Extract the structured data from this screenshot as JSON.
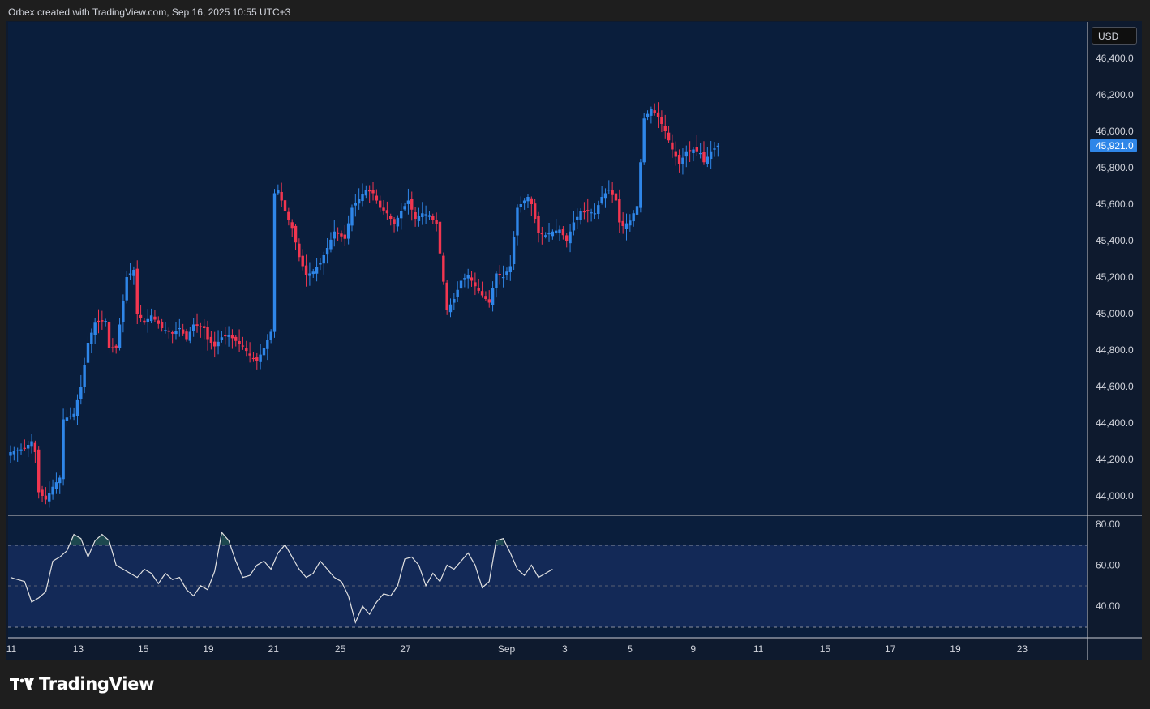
{
  "header": {
    "attribution": "Orbex created with TradingView.com, Sep 16, 2025 10:55 UTC+3"
  },
  "currency_label": "USD",
  "brand": {
    "name": "TradingView"
  },
  "colors": {
    "background": "#0a1e3c",
    "up": "#2f86e8",
    "down": "#f23650",
    "oscillator_band": "#132957",
    "line": "#e0e0e0",
    "price_tag": "#2f86e8"
  },
  "chart_data": [
    {
      "type": "candlestick",
      "title": "",
      "xlabel": "",
      "ylabel": "USD",
      "ylim": [
        43900,
        46550
      ],
      "y_ticks": [
        "44,000.0",
        "44,200.0",
        "44,400.0",
        "44,600.0",
        "44,800.0",
        "45,000.0",
        "45,200.0",
        "45,400.0",
        "45,600.0",
        "45,800.0",
        "46,000.0",
        "46,200.0",
        "46,400.0"
      ],
      "y_tick_values": [
        44000,
        44200,
        44400,
        44600,
        44800,
        45000,
        45200,
        45400,
        45600,
        45800,
        46000,
        46200,
        46400
      ],
      "x_ticks": [
        "11",
        "13",
        "15",
        "19",
        "21",
        "25",
        "27",
        "Sep",
        "3",
        "5",
        "9",
        "11",
        "15",
        "17",
        "19",
        "23"
      ],
      "last_price": 45921,
      "last_price_label": "45,921.0",
      "anchors": [
        [
          0,
          44240
        ],
        [
          4,
          44260
        ],
        [
          6,
          44300
        ],
        [
          7,
          44240
        ],
        [
          8,
          44020
        ],
        [
          10,
          43980
        ],
        [
          12,
          44050
        ],
        [
          14,
          44100
        ],
        [
          15,
          44420
        ],
        [
          18,
          44450
        ],
        [
          20,
          44600
        ],
        [
          22,
          44840
        ],
        [
          24,
          44950
        ],
        [
          27,
          44960
        ],
        [
          28,
          44810
        ],
        [
          30,
          44810
        ],
        [
          33,
          45200
        ],
        [
          35,
          45240
        ],
        [
          36,
          45000
        ],
        [
          38,
          44950
        ],
        [
          40,
          44990
        ],
        [
          43,
          44920
        ],
        [
          46,
          44890
        ],
        [
          48,
          44920
        ],
        [
          50,
          44860
        ],
        [
          52,
          44940
        ],
        [
          55,
          44920
        ],
        [
          56,
          44860
        ],
        [
          58,
          44820
        ],
        [
          60,
          44870
        ],
        [
          62,
          44880
        ],
        [
          64,
          44850
        ],
        [
          66,
          44820
        ],
        [
          68,
          44770
        ],
        [
          70,
          44740
        ],
        [
          72,
          44810
        ],
        [
          74,
          44900
        ],
        [
          75,
          45660
        ],
        [
          76,
          45680
        ],
        [
          78,
          45560
        ],
        [
          80,
          45470
        ],
        [
          82,
          45310
        ],
        [
          84,
          45210
        ],
        [
          86,
          45230
        ],
        [
          88,
          45280
        ],
        [
          90,
          45360
        ],
        [
          92,
          45450
        ],
        [
          95,
          45410
        ],
        [
          97,
          45580
        ],
        [
          99,
          45630
        ],
        [
          101,
          45680
        ],
        [
          103,
          45660
        ],
        [
          105,
          45580
        ],
        [
          107,
          45550
        ],
        [
          109,
          45490
        ],
        [
          111,
          45560
        ],
        [
          113,
          45620
        ],
        [
          115,
          45520
        ],
        [
          117,
          45550
        ],
        [
          119,
          45540
        ],
        [
          121,
          45490
        ],
        [
          122,
          45330
        ],
        [
          124,
          45020
        ],
        [
          126,
          45080
        ],
        [
          128,
          45180
        ],
        [
          130,
          45210
        ],
        [
          132,
          45150
        ],
        [
          134,
          45100
        ],
        [
          136,
          45060
        ],
        [
          138,
          45220
        ],
        [
          140,
          45200
        ],
        [
          142,
          45260
        ],
        [
          144,
          45580
        ],
        [
          147,
          45640
        ],
        [
          148,
          45600
        ],
        [
          150,
          45440
        ],
        [
          152,
          45430
        ],
        [
          154,
          45450
        ],
        [
          156,
          45460
        ],
        [
          158,
          45400
        ],
        [
          160,
          45500
        ],
        [
          162,
          45560
        ],
        [
          164,
          45560
        ],
        [
          166,
          45550
        ],
        [
          168,
          45640
        ],
        [
          170,
          45680
        ],
        [
          172,
          45620
        ],
        [
          173,
          45500
        ],
        [
          174,
          45480
        ],
        [
          176,
          45510
        ],
        [
          178,
          45590
        ],
        [
          180,
          46070
        ],
        [
          182,
          46120
        ],
        [
          184,
          46080
        ],
        [
          186,
          46000
        ],
        [
          188,
          45900
        ],
        [
          190,
          45820
        ],
        [
          192,
          45890
        ],
        [
          194,
          45900
        ],
        [
          196,
          45880
        ],
        [
          197,
          45830
        ],
        [
          199,
          45890
        ],
        [
          201,
          45921
        ]
      ],
      "candle_count": 202
    },
    {
      "type": "line",
      "title": "",
      "xlabel": "",
      "ylabel": "",
      "ylim": [
        24,
        86
      ],
      "y_ticks": [
        "40.00",
        "60.00",
        "80.00"
      ],
      "y_tick_values": [
        40,
        60,
        80
      ],
      "band": [
        30,
        70
      ],
      "midline": 50,
      "anchors": [
        [
          0,
          54
        ],
        [
          4,
          52
        ],
        [
          6,
          42
        ],
        [
          8,
          44
        ],
        [
          10,
          47
        ],
        [
          12,
          62
        ],
        [
          14,
          64
        ],
        [
          16,
          67
        ],
        [
          18,
          75
        ],
        [
          20,
          73
        ],
        [
          22,
          64
        ],
        [
          24,
          72
        ],
        [
          26,
          75
        ],
        [
          28,
          72
        ],
        [
          30,
          60
        ],
        [
          32,
          58
        ],
        [
          34,
          56
        ],
        [
          36,
          54
        ],
        [
          38,
          58
        ],
        [
          40,
          56
        ],
        [
          42,
          51
        ],
        [
          44,
          56
        ],
        [
          46,
          53
        ],
        [
          48,
          54
        ],
        [
          50,
          48
        ],
        [
          52,
          45
        ],
        [
          54,
          50
        ],
        [
          56,
          48
        ],
        [
          58,
          57
        ],
        [
          60,
          76
        ],
        [
          62,
          72
        ],
        [
          64,
          62
        ],
        [
          66,
          54
        ],
        [
          68,
          55
        ],
        [
          70,
          60
        ],
        [
          72,
          62
        ],
        [
          74,
          58
        ],
        [
          76,
          66
        ],
        [
          78,
          70
        ],
        [
          80,
          64
        ],
        [
          82,
          58
        ],
        [
          84,
          54
        ],
        [
          86,
          56
        ],
        [
          88,
          62
        ],
        [
          90,
          58
        ],
        [
          92,
          54
        ],
        [
          94,
          52
        ],
        [
          96,
          45
        ],
        [
          98,
          32
        ],
        [
          100,
          40
        ],
        [
          102,
          36
        ],
        [
          104,
          42
        ],
        [
          106,
          46
        ],
        [
          108,
          45
        ],
        [
          110,
          50
        ],
        [
          112,
          63
        ],
        [
          114,
          64
        ],
        [
          116,
          60
        ],
        [
          118,
          50
        ],
        [
          120,
          56
        ],
        [
          122,
          52
        ],
        [
          124,
          60
        ],
        [
          126,
          58
        ],
        [
          128,
          62
        ],
        [
          130,
          66
        ],
        [
          132,
          60
        ],
        [
          134,
          49
        ],
        [
          136,
          52
        ],
        [
          138,
          72
        ],
        [
          140,
          73
        ],
        [
          142,
          66
        ],
        [
          144,
          58
        ],
        [
          146,
          55
        ],
        [
          148,
          60
        ],
        [
          150,
          54
        ],
        [
          152,
          56
        ],
        [
          154,
          58
        ]
      ],
      "point_count": 155
    }
  ]
}
